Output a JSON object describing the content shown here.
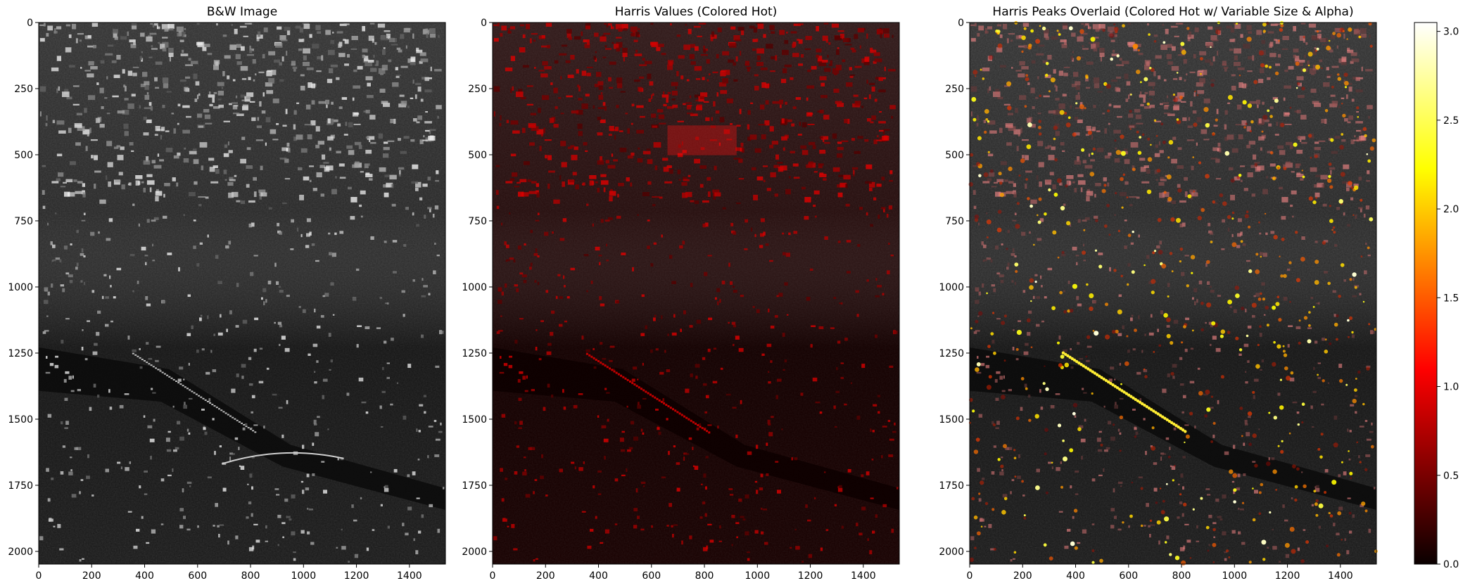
{
  "chart_data": [
    {
      "type": "heatmap",
      "title": "B&W Image",
      "colormap": "gray",
      "xlabel": "",
      "ylabel": "",
      "xlim": [
        0,
        1536
      ],
      "ylim": [
        2048,
        0
      ],
      "xticks": [
        "0",
        "200",
        "400",
        "600",
        "800",
        "1000",
        "1200",
        "1400"
      ],
      "yticks": [
        "0",
        "250",
        "500",
        "750",
        "1000",
        "1250",
        "1500",
        "1750",
        "2000"
      ]
    },
    {
      "type": "heatmap",
      "title": "Harris Values (Colored Hot)",
      "colormap": "hot",
      "xlabel": "",
      "ylabel": "",
      "xlim": [
        0,
        1536
      ],
      "ylim": [
        2048,
        0
      ],
      "xticks": [
        "0",
        "200",
        "400",
        "600",
        "800",
        "1000",
        "1200",
        "1400"
      ],
      "yticks": [
        "0",
        "250",
        "500",
        "750",
        "1000",
        "1250",
        "1500",
        "1750",
        "2000"
      ]
    },
    {
      "type": "scatter",
      "title": "Harris Peaks Overlaid (Colored Hot w/ Variable Size & Alpha)",
      "colormap": "hot",
      "background": "gray image",
      "xlabel": "",
      "ylabel": "",
      "xlim": [
        0,
        1536
      ],
      "ylim": [
        2048,
        0
      ],
      "xticks": [
        "0",
        "200",
        "400",
        "600",
        "800",
        "1000",
        "1200",
        "1400"
      ],
      "yticks": [
        "0",
        "250",
        "500",
        "750",
        "1000",
        "1250",
        "1500",
        "1750",
        "2000"
      ]
    }
  ],
  "colorbar": {
    "colormap": "hot",
    "range": [
      0.0,
      3.05
    ],
    "ticks": [
      "0.0",
      "0.5",
      "1.0",
      "1.5",
      "2.0",
      "2.5",
      "3.0"
    ]
  }
}
